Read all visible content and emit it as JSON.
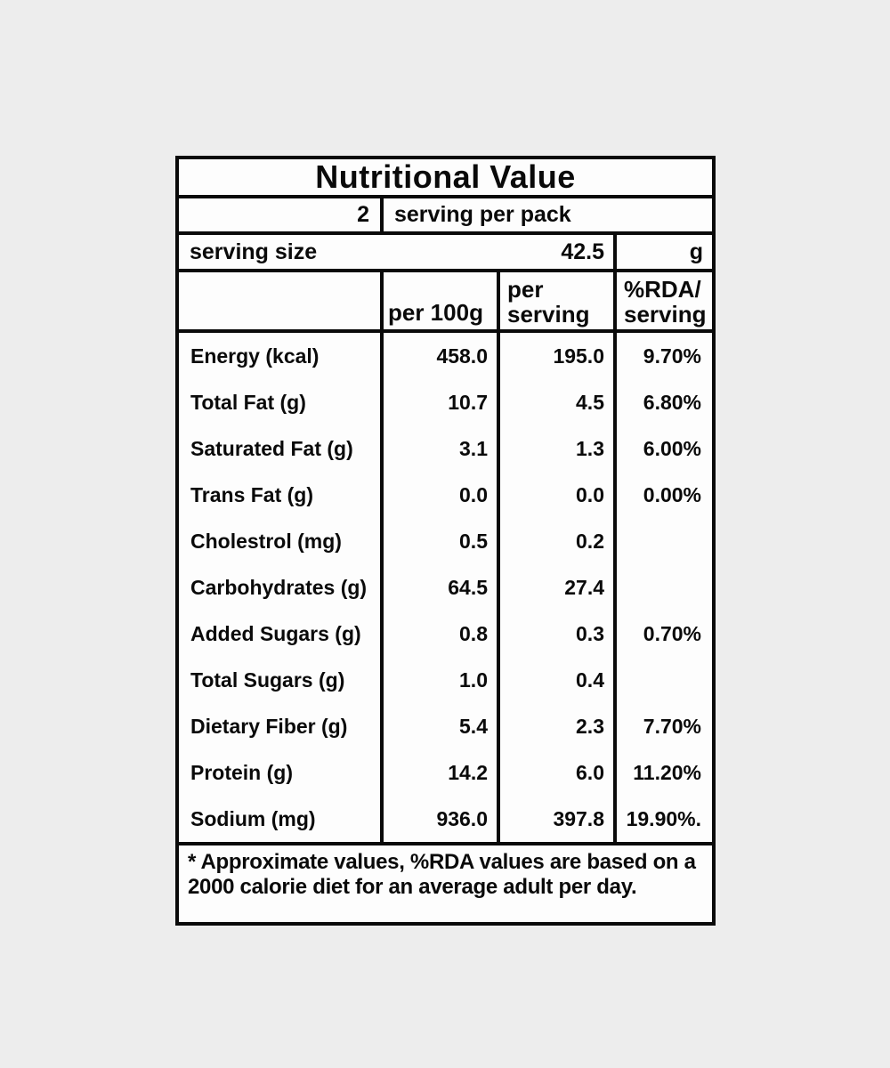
{
  "page": {
    "background": "#ededed",
    "table_background": "#fdfdfd",
    "line_color": "#0a0a0a"
  },
  "table": {
    "title": "Nutritional Value",
    "servings_row": {
      "count": "2",
      "label": "serving per pack"
    },
    "serving_size_row": {
      "label": "serving size",
      "value": "42.5",
      "unit": "g"
    },
    "column_headers": {
      "per_100g": "per 100g",
      "per_serving_line1": "per",
      "per_serving_line2": "serving",
      "rda_line1": "%RDA/",
      "rda_line2": "serving"
    },
    "rows": [
      {
        "label": "Energy (kcal)",
        "per_100g": "458.0",
        "per_serving": "195.0",
        "rda": "9.70%"
      },
      {
        "label": "Total Fat (g)",
        "per_100g": "10.7",
        "per_serving": "4.5",
        "rda": "6.80%"
      },
      {
        "label": "Saturated Fat (g)",
        "per_100g": "3.1",
        "per_serving": "1.3",
        "rda": "6.00%"
      },
      {
        "label": "Trans Fat (g)",
        "per_100g": "0.0",
        "per_serving": "0.0",
        "rda": "0.00%"
      },
      {
        "label": "Cholestrol (mg)",
        "per_100g": "0.5",
        "per_serving": "0.2",
        "rda": ""
      },
      {
        "label": "Carbohydrates (g)",
        "per_100g": "64.5",
        "per_serving": "27.4",
        "rda": ""
      },
      {
        "label": "Added Sugars (g)",
        "per_100g": "0.8",
        "per_serving": "0.3",
        "rda": "0.70%"
      },
      {
        "label": "Total Sugars (g)",
        "per_100g": "1.0",
        "per_serving": "0.4",
        "rda": ""
      },
      {
        "label": "Dietary Fiber (g)",
        "per_100g": "5.4",
        "per_serving": "2.3",
        "rda": "7.70%"
      },
      {
        "label": "Protein (g)",
        "per_100g": "14.2",
        "per_serving": "6.0",
        "rda": "11.20%"
      },
      {
        "label": "Sodium (mg)",
        "per_100g": "936.0",
        "per_serving": "397.8",
        "rda": "19.90%."
      }
    ],
    "footnote_line1": "* Approximate values, %RDA values are based on a",
    "footnote_line2": "2000 calorie diet for an average adult per day."
  }
}
